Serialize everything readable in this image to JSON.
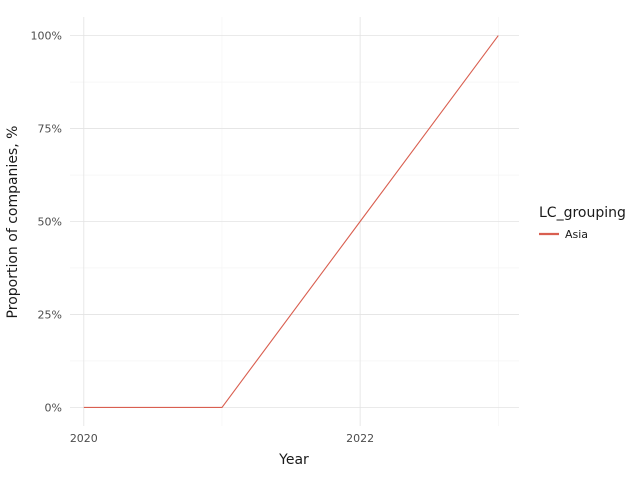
{
  "chart_data": {
    "type": "line",
    "title": "",
    "xlabel": "Year",
    "ylabel": "Proportion of companies, %",
    "x": [
      2020,
      2021,
      2022,
      2023
    ],
    "series": [
      {
        "name": "Asia",
        "values": [
          0,
          0,
          50,
          100
        ],
        "color": "#d95f50"
      }
    ],
    "xlim": [
      2019.9,
      2023.15
    ],
    "ylim": [
      -5,
      105
    ],
    "x_ticks": [
      2020,
      2022
    ],
    "x_tick_labels": [
      "2020",
      "2022"
    ],
    "y_ticks": [
      0,
      25,
      50,
      75,
      100
    ],
    "y_tick_labels": [
      "0%",
      "25%",
      "50%",
      "75%",
      "100%"
    ],
    "legend_title": "LC_grouping",
    "legend_position": "right",
    "grid": true
  }
}
